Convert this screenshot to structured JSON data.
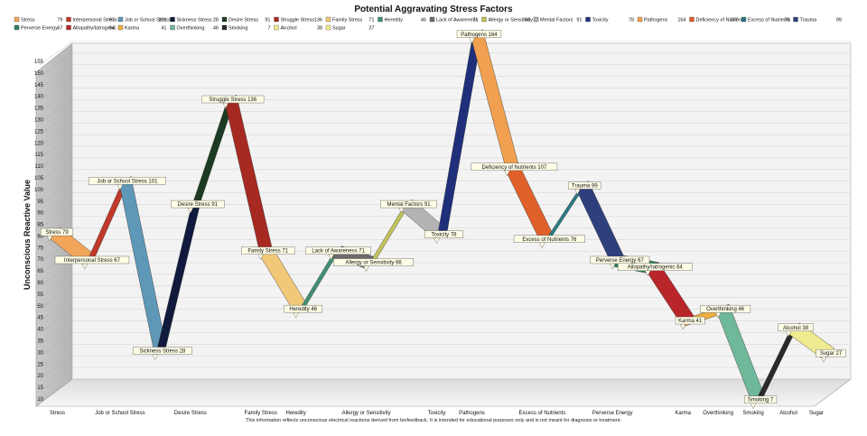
{
  "chart_data": {
    "type": "line",
    "title": "Potential Aggravating Stress Factors",
    "ylabel": "Unconscious Reactive Value",
    "xlabel": "",
    "footnote": "This information reflects unconscious electrical reactions derived from biofeedback. It is intended for educational purposes only and is not meant for diagnosis or treatment.",
    "ylim": [
      10,
      155
    ],
    "ytick_step": 5,
    "grid": true,
    "legend_placement": "top",
    "categories": [
      "Stress",
      "Interpersonal Stress",
      "Job or School Stress",
      "Sickness Stress",
      "Desire Stress",
      "Struggle Stress",
      "Family Stress",
      "Heredity",
      "Lack of Awareness",
      "Allergy or Sensitivity",
      "Mental Factors",
      "Toxicity",
      "Pathogens",
      "Deficiency of Nutrients",
      "Excess of Nutrients",
      "Trauma",
      "Perverse Energy",
      "Allopathy/Iatrogenic",
      "Karma",
      "Overthinking",
      "Smoking",
      "Alcohol",
      "Sugar"
    ],
    "x_tick_labels": [
      "Stress",
      "Job or School Stress",
      "Desire Stress",
      "Family Stress",
      "Heredity",
      "Allergy or Sensitivity",
      "Toxicity",
      "Pathogens",
      "Excess of Nutrients",
      "Perverse Energy",
      "Karma",
      "Overthinking",
      "Smoking",
      "Alcohol",
      "Sugar"
    ],
    "values": [
      79,
      67,
      101,
      28,
      91,
      136,
      71,
      46,
      71,
      66,
      91,
      78,
      164,
      107,
      76,
      99,
      67,
      64,
      41,
      46,
      7,
      38,
      27
    ],
    "data_labels": [
      "Stress 79",
      "Interpersonal Stress 67",
      "Job or School Stress 101",
      "Sickness Stress 28",
      "Desire Stress 91",
      "Struggle Stress 136",
      "Family Stress 71",
      "Heredity 46",
      "Lack of Awareness 71",
      "Allergy or Sensitivity 66",
      "Mental Factors 91",
      "Toxicity 78",
      "Pathogens 164",
      "Deficiency of Nutrients 107",
      "Excess of Nutrients 76",
      "Trauma 99",
      "Perverse Energy 67",
      "Allopathy/Iatrogenic 64",
      "Karma 41",
      "Overthinking 46",
      "Smoking 7",
      "Alcohol 38",
      "Sugar 27"
    ],
    "legend": [
      {
        "name": "Stress",
        "value": "79",
        "color": "#f2a65a"
      },
      {
        "name": "Interpersonal Stress",
        "value": "67",
        "color": "#c0392b"
      },
      {
        "name": "Job or School Stress",
        "value": "101",
        "color": "#5f97b7"
      },
      {
        "name": "Sickness Stress",
        "value": "28",
        "color": "#101a3d"
      },
      {
        "name": "Desire Stress",
        "value": "91",
        "color": "#1d3a23"
      },
      {
        "name": "Struggle Stress",
        "value": "136",
        "color": "#a62a22"
      },
      {
        "name": "Family Stress",
        "value": "71",
        "color": "#f0c878"
      },
      {
        "name": "Heredity",
        "value": "46",
        "color": "#3f8f70"
      },
      {
        "name": "Lack of Awareness",
        "value": "71",
        "color": "#6b6b6b"
      },
      {
        "name": "Allergy or Sensitivity",
        "value": "66",
        "color": "#c2c45a"
      },
      {
        "name": "Mental Factors",
        "value": "91",
        "color": "#b4b4b4"
      },
      {
        "name": "Toxicity",
        "value": "78",
        "color": "#1f2f7a"
      },
      {
        "name": "Pathogens",
        "value": "164",
        "color": "#f0a050"
      },
      {
        "name": "Deficiency of Nutrients",
        "value": "107",
        "color": "#e0602a"
      },
      {
        "name": "Excess of Nutrients",
        "value": "76",
        "color": "#2a7a85"
      },
      {
        "name": "Trauma",
        "value": "99",
        "color": "#2e3f7c"
      },
      {
        "name": "Perverse Energy",
        "value": "67",
        "color": "#2f8060"
      },
      {
        "name": "Allopathy/Iatrogenic",
        "value": "64",
        "color": "#b8262a"
      },
      {
        "name": "Karma",
        "value": "41",
        "color": "#f0b040"
      },
      {
        "name": "Overthinking",
        "value": "46",
        "color": "#6fb89a"
      },
      {
        "name": "Smoking",
        "value": "7",
        "color": "#2a2a2a"
      },
      {
        "name": "Alcohol",
        "value": "38",
        "color": "#eeea90"
      },
      {
        "name": "Sugar",
        "value": "27",
        "color": "#f4f090"
      }
    ]
  }
}
